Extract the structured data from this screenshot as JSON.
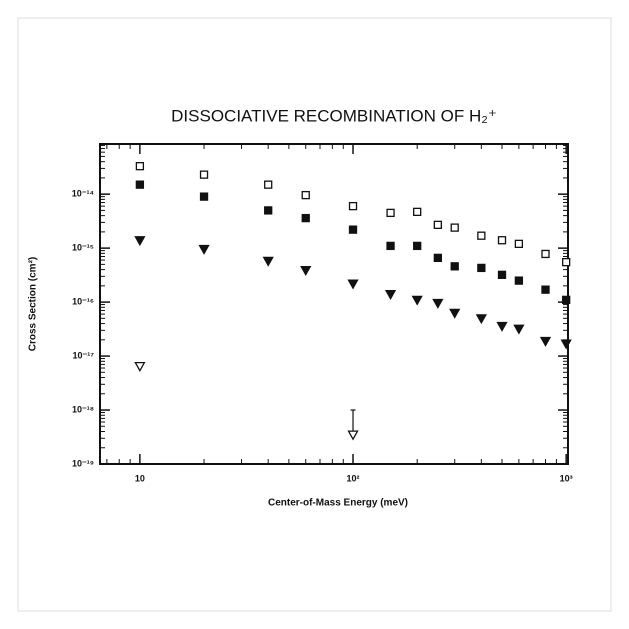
{
  "chart_data": {
    "type": "scatter",
    "title": "DISSOCIATIVE RECOMBINATION OF H₂⁺",
    "x_label": "Center-of-Mass Energy (meV)",
    "y_label": "Cross Section (cm²)",
    "log_x": true,
    "log_y": true,
    "xlim": [
      6.5,
      1020
    ],
    "ylim": [
      1e-19,
      8.5e-14
    ],
    "xticks": [
      10,
      {
        "value": 100,
        "label": "10²"
      },
      {
        "value": 1000,
        "label": "10³"
      }
    ],
    "yticks": [
      {
        "value": 1e-19,
        "label": "10⁻¹⁹"
      },
      {
        "value": 1e-18,
        "label": "10⁻¹⁸"
      },
      {
        "value": 1e-17,
        "label": "10⁻¹⁷"
      },
      {
        "value": 1e-16,
        "label": "10⁻¹⁶"
      },
      {
        "value": 1e-15,
        "label": "10⁻¹⁵"
      },
      {
        "value": 1e-14,
        "label": "10⁻¹⁴"
      }
    ],
    "series": [
      {
        "marker": "square-open",
        "color": "#111",
        "x": [
          10,
          20,
          40,
          60,
          100,
          150,
          200,
          250,
          300,
          400,
          500,
          600,
          800,
          1000
        ],
        "values": [
          3.3e-14,
          2.3e-14,
          1.5e-14,
          9.6e-15,
          6e-15,
          4.5e-15,
          4.7e-15,
          2.7e-15,
          2.4e-15,
          1.7e-15,
          1.4e-15,
          1.2e-15,
          7.8e-16,
          5.5e-16
        ]
      },
      {
        "marker": "square-filled",
        "color": "#111",
        "x": [
          10,
          20,
          40,
          60,
          100,
          150,
          200,
          250,
          300,
          400,
          500,
          600,
          800,
          1000
        ],
        "values": [
          1.5e-14,
          9e-15,
          5e-15,
          3.6e-15,
          2.2e-15,
          1.1e-15,
          1.1e-15,
          6.6e-16,
          4.6e-16,
          4.3e-16,
          3.2e-16,
          2.5e-16,
          1.7e-16,
          1.1e-16
        ]
      },
      {
        "marker": "triangle-filled",
        "color": "#111",
        "x": [
          10,
          20,
          40,
          60,
          100,
          150,
          200,
          250,
          300,
          400,
          500,
          600,
          800,
          1000
        ],
        "values": [
          1.4e-15,
          9.6e-16,
          5.8e-16,
          3.9e-16,
          2.2e-16,
          1.4e-16,
          1.1e-16,
          9.6e-17,
          6.3e-17,
          5e-17,
          3.6e-17,
          3.2e-17,
          1.9e-17,
          1.7e-17
        ]
      },
      {
        "marker": "triangle-open",
        "color": "#111",
        "x": [
          10,
          100
        ],
        "values": [
          6.5e-18,
          3.5e-19
        ],
        "error_upper": [
          null,
          6.5e-19
        ]
      }
    ],
    "minor_ticks": true
  }
}
